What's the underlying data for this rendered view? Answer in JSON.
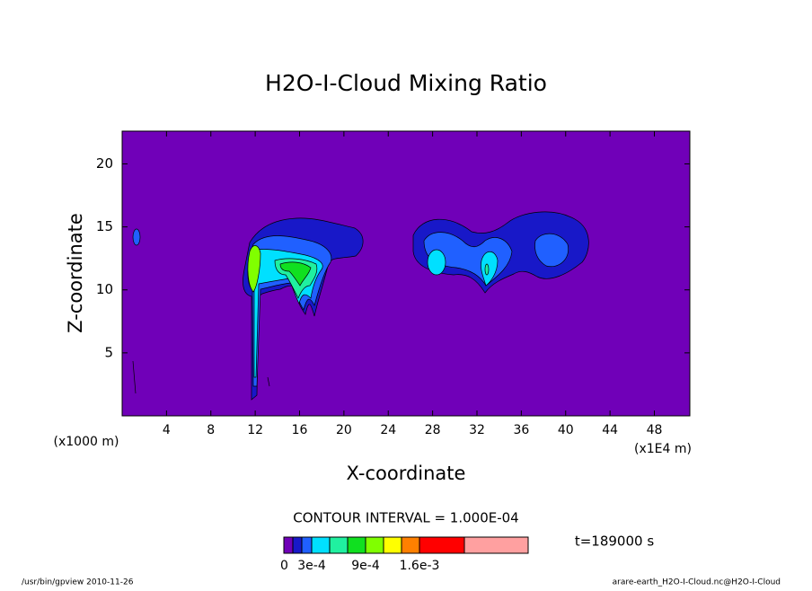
{
  "chart_data": {
    "type": "contour",
    "title": "H2O-I-Cloud Mixing Ratio",
    "xlabel": "X-coordinate",
    "ylabel": "Z-coordinate",
    "x_unit_left": "(x1000 m)",
    "x_unit_right": "(x1E4 m)",
    "xlim": [
      0,
      51.2
    ],
    "ylim": [
      0,
      22.6
    ],
    "xticks": [
      4,
      8,
      12,
      16,
      20,
      24,
      28,
      32,
      36,
      40,
      44,
      48
    ],
    "yticks": [
      5,
      10,
      15,
      20
    ],
    "background_color": "#7000b8",
    "contour_note": "CONTOUR INTERVAL = 1.000E-04",
    "time_label": "t=189000 s",
    "colorbar": {
      "colors": [
        "#7000b8",
        "#1818c8",
        "#2060ff",
        "#00e0ff",
        "#20f0a0",
        "#10e020",
        "#80ff00",
        "#ffff00",
        "#ff8000",
        "#ff0000",
        "#ffa0a0"
      ],
      "labels": [
        "0",
        "3e-4",
        "9e-4",
        "1.6e-3"
      ]
    },
    "footer_left": "/usr/bin/gpview  2010-11-26",
    "footer_right": "arare-earth_H2O-I-Cloud.nc@H2O-I-Cloud"
  }
}
